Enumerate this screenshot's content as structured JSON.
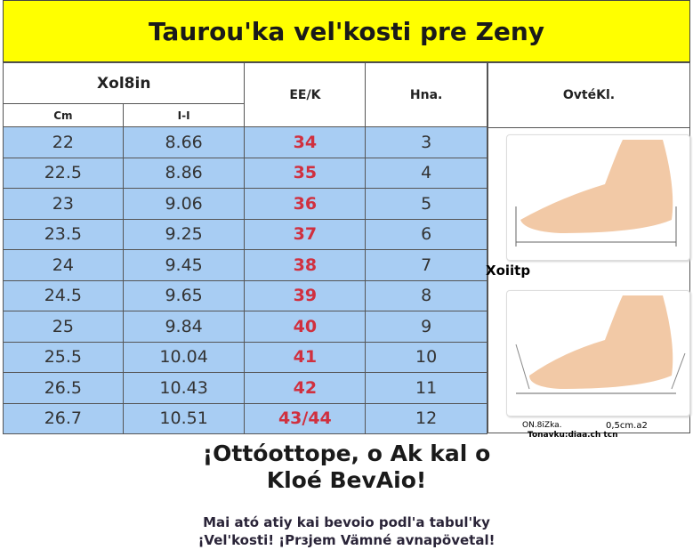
{
  "title": "Taurou'ka vel'kosti pre Zeny",
  "headers": {
    "group": "Xol8in",
    "cm": "Cm",
    "in": "I-I",
    "eu": "EE/K",
    "us": "Hna.",
    "photo": "OvtéKl."
  },
  "rows": [
    {
      "cm": "22",
      "in": "8.66",
      "eu": "34",
      "us": "3"
    },
    {
      "cm": "22.5",
      "in": "8.86",
      "eu": "35",
      "us": "4"
    },
    {
      "cm": "23",
      "in": "9.06",
      "eu": "36",
      "us": "5"
    },
    {
      "cm": "23.5",
      "in": "9.25",
      "eu": "37",
      "us": "6"
    },
    {
      "cm": "24",
      "in": "9.45",
      "eu": "38",
      "us": "7"
    },
    {
      "cm": "24.5",
      "in": "9.65",
      "eu": "39",
      "us": "8"
    },
    {
      "cm": "25",
      "in": "9.84",
      "eu": "40",
      "us": "9"
    },
    {
      "cm": "25.5",
      "in": "10.04",
      "eu": "41",
      "us": "10"
    },
    {
      "cm": "26.5",
      "in": "10.43",
      "eu": "42",
      "us": "11"
    },
    {
      "cm": "26.7",
      "in": "10.51",
      "eu": "43/44",
      "us": "12"
    }
  ],
  "photo_panel": {
    "middle_label": "Xoiitp",
    "note1": "ON.8iZka.",
    "note2": "0,5cm.a2",
    "note3": "Tonavku:diaa.ch tcn"
  },
  "footer": {
    "headline1": "¡Ottóottope, o Ak kal o",
    "headline2": "Kloé BevAio!",
    "line1": "Mai ató atiy kai bevoio podl'a tabul'ky",
    "line2": "¡Vel'kosti! ¡Prɜjem Vämné avnapövetal!"
  },
  "colors": {
    "title_bg": "#ffff00",
    "row_bg": "#a8cdf3",
    "eu_text": "#d0303f"
  }
}
